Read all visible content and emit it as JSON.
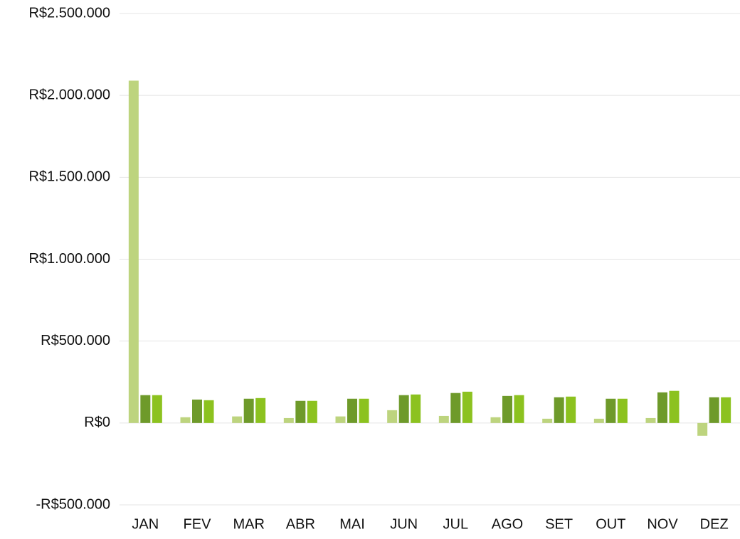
{
  "chart_data": {
    "type": "bar",
    "categories": [
      "JAN",
      "FEV",
      "MAR",
      "ABR",
      "MAI",
      "JUN",
      "JUL",
      "AGO",
      "SET",
      "OUT",
      "NOV",
      "DEZ"
    ],
    "series": [
      {
        "color": "#bdd47e",
        "values": [
          2090000,
          35000,
          40000,
          30000,
          40000,
          78000,
          43000,
          35000,
          26000,
          26000,
          30000,
          -78000
        ]
      },
      {
        "color": "#6e9a2a",
        "values": [
          170000,
          143000,
          148000,
          135000,
          148000,
          170000,
          183000,
          165000,
          157000,
          148000,
          187000,
          157000
        ]
      },
      {
        "color": "#8cc21f",
        "values": [
          170000,
          139000,
          152000,
          135000,
          148000,
          174000,
          191000,
          170000,
          161000,
          148000,
          196000,
          157000
        ]
      }
    ],
    "ylim": [
      -500000,
      2500000
    ],
    "yticks": [
      {
        "value": -500000,
        "label": "-R$500.000"
      },
      {
        "value": 0,
        "label": "R$0"
      },
      {
        "value": 500000,
        "label": "R$500.000"
      },
      {
        "value": 1000000,
        "label": "R$1.000.000"
      },
      {
        "value": 1500000,
        "label": "R$1.500.000"
      },
      {
        "value": 2000000,
        "label": "R$2.000.000"
      },
      {
        "value": 2500000,
        "label": "R$2.500.000"
      }
    ],
    "grid": true
  }
}
